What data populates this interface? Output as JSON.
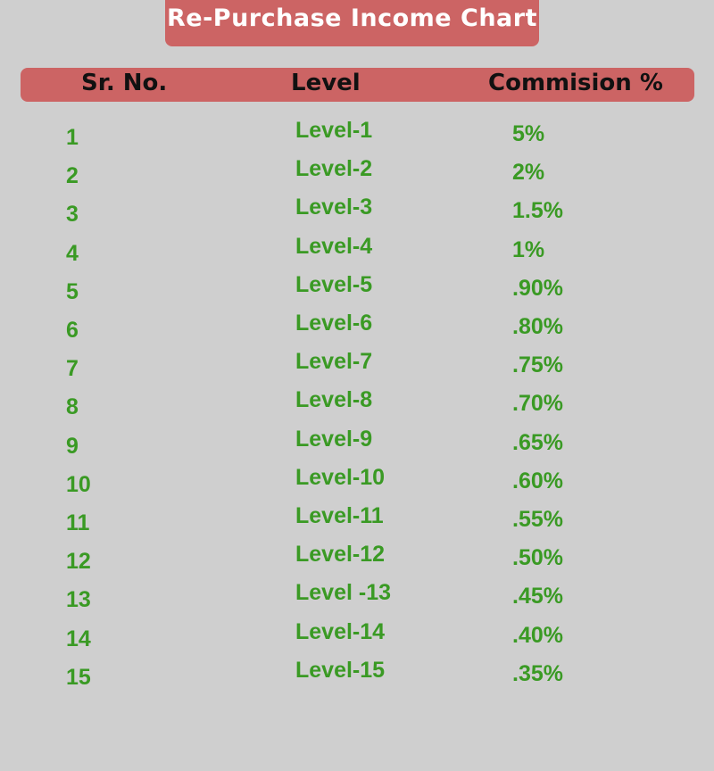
{
  "title": "Re-Purchase Income Chart",
  "table": {
    "headers": {
      "sr_no": "Sr. No.",
      "level": "Level",
      "commission": "Commision %"
    },
    "rows": [
      {
        "sr": "1",
        "level": "Level-1",
        "commission": "5%"
      },
      {
        "sr": "2",
        "level": "Level-2",
        "commission": "2%"
      },
      {
        "sr": "3",
        "level": "Level-3",
        "commission": "1.5%"
      },
      {
        "sr": "4",
        "level": "Level-4",
        "commission": "1%"
      },
      {
        "sr": "5",
        "level": "Level-5",
        "commission": ".90%"
      },
      {
        "sr": "6",
        "level": "Level-6",
        "commission": ".80%"
      },
      {
        "sr": "7",
        "level": "Level-7",
        "commission": ".75%"
      },
      {
        "sr": "8",
        "level": "Level-8",
        "commission": ".70%"
      },
      {
        "sr": "9",
        "level": "Level-9",
        "commission": ".65%"
      },
      {
        "sr": "10",
        "level": "Level-10",
        "commission": ".60%"
      },
      {
        "sr": "11",
        "level": "Level-11",
        "commission": ".55%"
      },
      {
        "sr": "12",
        "level": "Level-12",
        "commission": ".50%"
      },
      {
        "sr": "13",
        "level": "Level -13",
        "commission": ".45%"
      },
      {
        "sr": "14",
        "level": "Level-14",
        "commission": ".40%"
      },
      {
        "sr": "15",
        "level": "Level-15",
        "commission": ".35%"
      }
    ]
  },
  "colors": {
    "background": "#cfcfcf",
    "header_fill": "#cc6464",
    "title_text": "#ffffff",
    "header_text": "#111111",
    "cell_text": "#3a9a24"
  }
}
